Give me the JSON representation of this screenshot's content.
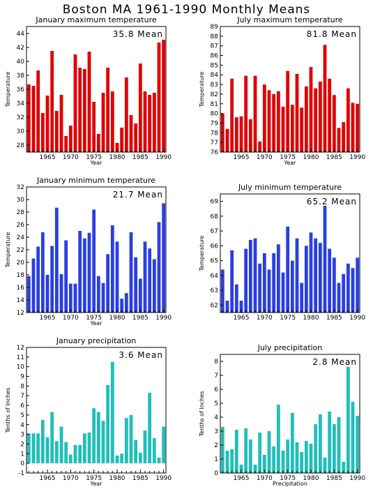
{
  "title": "Boston MA   1961-1990 Monthly Means",
  "colors": {
    "max_temp": "#e00000",
    "min_temp": "#2a3fe0",
    "precip": "#1fbfb8"
  },
  "chart_data": [
    {
      "type": "bar",
      "title": "January maximum temperature",
      "annotation": "35.8 Mean",
      "xlabel": "Year",
      "ylabel": "Temperature",
      "ylim": [
        27,
        45
      ],
      "yticks": [
        28,
        30,
        32,
        34,
        36,
        38,
        40,
        42,
        44
      ],
      "xlim": [
        1960.5,
        1990.5
      ],
      "xticks": [
        1965,
        1970,
        1975,
        1980,
        1985,
        1990
      ],
      "x": [
        1961,
        1962,
        1963,
        1964,
        1965,
        1966,
        1967,
        1968,
        1969,
        1970,
        1971,
        1972,
        1973,
        1974,
        1975,
        1976,
        1977,
        1978,
        1979,
        1980,
        1981,
        1982,
        1983,
        1984,
        1985,
        1986,
        1987,
        1988,
        1989,
        1990
      ],
      "values": [
        36.7,
        36.5,
        38.7,
        32.6,
        35.1,
        41.5,
        32.9,
        35.2,
        29.3,
        30.8,
        41.0,
        39.1,
        38.9,
        41.4,
        34.2,
        29.6,
        35.5,
        39.1,
        35.7,
        28.3,
        30.5,
        37.7,
        32.3,
        31.1,
        39.7,
        35.7,
        35.2,
        35.5,
        42.7,
        43.1
      ],
      "color": "#e00000"
    },
    {
      "type": "bar",
      "title": "July maximum temperature",
      "annotation": "81.8 Mean",
      "xlabel": "Year",
      "ylabel": "Temperature",
      "ylim": [
        76,
        89
      ],
      "yticks": [
        76,
        77,
        78,
        79,
        80,
        81,
        82,
        83,
        84,
        85,
        86,
        87,
        88,
        89
      ],
      "xlim": [
        1960.5,
        1990.5
      ],
      "xticks": [
        1965,
        1970,
        1975,
        1980,
        1985,
        1990
      ],
      "x": [
        1961,
        1962,
        1963,
        1964,
        1965,
        1966,
        1967,
        1968,
        1969,
        1970,
        1971,
        1972,
        1973,
        1974,
        1975,
        1976,
        1977,
        1978,
        1979,
        1980,
        1981,
        1982,
        1983,
        1984,
        1985,
        1986,
        1987,
        1988,
        1989,
        1990
      ],
      "values": [
        80.0,
        78.4,
        83.6,
        79.6,
        79.7,
        83.9,
        79.4,
        83.9,
        77.1,
        83.0,
        82.4,
        82.0,
        82.3,
        80.7,
        84.4,
        80.9,
        84.1,
        80.6,
        82.8,
        84.8,
        82.6,
        83.3,
        87.1,
        83.6,
        81.9,
        78.5,
        79.1,
        82.6,
        81.1,
        81.0
      ],
      "color": "#e00000"
    },
    {
      "type": "bar",
      "title": "January minimum temperature",
      "annotation": "21.7 Mean",
      "xlabel": "Year",
      "ylabel": "Temperature",
      "ylim": [
        12,
        32
      ],
      "yticks": [
        12,
        14,
        16,
        18,
        20,
        22,
        24,
        26,
        28,
        30,
        32
      ],
      "xlim": [
        1960.5,
        1990.5
      ],
      "xticks": [
        1965,
        1970,
        1975,
        1980,
        1985,
        1990
      ],
      "x": [
        1961,
        1962,
        1963,
        1964,
        1965,
        1966,
        1967,
        1968,
        1969,
        1970,
        1971,
        1972,
        1973,
        1974,
        1975,
        1976,
        1977,
        1978,
        1979,
        1980,
        1981,
        1982,
        1983,
        1984,
        1985,
        1986,
        1987,
        1988,
        1989,
        1990
      ],
      "values": [
        17.8,
        20.6,
        22.5,
        24.8,
        18.0,
        22.6,
        28.7,
        18.1,
        23.5,
        16.6,
        16.6,
        25.0,
        23.8,
        24.7,
        28.4,
        17.8,
        16.7,
        21.3,
        25.9,
        23.3,
        14.2,
        15.1,
        24.8,
        20.8,
        17.4,
        23.3,
        22.2,
        20.5,
        26.4,
        29.4
      ],
      "color": "#2a3fe0"
    },
    {
      "type": "bar",
      "title": "July minimum temperature",
      "annotation": "65.2 Mean",
      "xlabel": "",
      "ylabel": "Temperature",
      "ylim": [
        61.5,
        69.5
      ],
      "yticks": [
        62,
        63,
        64,
        65,
        66,
        67,
        68,
        69
      ],
      "xlim": [
        1960.5,
        1990.5
      ],
      "xticks": [
        1965,
        1970,
        1975,
        1980,
        1985,
        1990
      ],
      "x": [
        1961,
        1962,
        1963,
        1964,
        1965,
        1966,
        1967,
        1968,
        1969,
        1970,
        1971,
        1972,
        1973,
        1974,
        1975,
        1976,
        1977,
        1978,
        1979,
        1980,
        1981,
        1982,
        1983,
        1984,
        1985,
        1986,
        1987,
        1988,
        1989,
        1990
      ],
      "values": [
        64.4,
        62.3,
        65.7,
        63.4,
        62.3,
        65.8,
        66.4,
        66.5,
        64.8,
        65.5,
        64.4,
        65.5,
        66.1,
        64.2,
        67.3,
        65.0,
        66.5,
        63.5,
        66.0,
        66.9,
        66.5,
        66.2,
        68.7,
        65.8,
        65.2,
        63.5,
        64.1,
        64.8,
        64.5,
        65.2
      ],
      "color": "#2a3fe0"
    },
    {
      "type": "bar",
      "title": "January precipitation",
      "annotation": "3.6 Mean",
      "xlabel": "Year",
      "ylabel": "Tenths of Inches",
      "ylim": [
        -1,
        12
      ],
      "yticks": [
        -1,
        0,
        1,
        2,
        3,
        4,
        5,
        6,
        7,
        8,
        9,
        10,
        11,
        12
      ],
      "xlim": [
        1960.5,
        1990.5
      ],
      "xticks": [
        1965,
        1970,
        1975,
        1980,
        1985,
        1990
      ],
      "x": [
        1961,
        1962,
        1963,
        1964,
        1965,
        1966,
        1967,
        1968,
        1969,
        1970,
        1971,
        1972,
        1973,
        1974,
        1975,
        1976,
        1977,
        1978,
        1979,
        1980,
        1981,
        1982,
        1983,
        1984,
        1985,
        1986,
        1987,
        1988,
        1989,
        1990
      ],
      "values": [
        3.1,
        3.1,
        3.1,
        4.5,
        2.7,
        5.3,
        2.3,
        3.8,
        2.2,
        0.9,
        1.9,
        1.9,
        3.1,
        3.2,
        5.7,
        5.3,
        4.4,
        8.1,
        10.5,
        0.8,
        1.0,
        4.7,
        5.0,
        2.4,
        1.1,
        3.4,
        7.3,
        2.6,
        0.6,
        3.8
      ],
      "color": "#1fbfb8"
    },
    {
      "type": "bar",
      "title": "July precipitation",
      "annotation": "2.8 Mean",
      "xlabel": "Precipitation",
      "ylabel": "Tenths of Inches",
      "ylim": [
        0,
        8.5
      ],
      "yticks": [
        0,
        1,
        2,
        3,
        4,
        5,
        6,
        7,
        8
      ],
      "xlim": [
        1960.5,
        1990.5
      ],
      "xticks": [
        1965,
        1970,
        1975,
        1980,
        1985,
        1990
      ],
      "x": [
        1961,
        1962,
        1963,
        1964,
        1965,
        1966,
        1967,
        1968,
        1969,
        1970,
        1971,
        1972,
        1973,
        1974,
        1975,
        1976,
        1977,
        1978,
        1979,
        1980,
        1981,
        1982,
        1983,
        1984,
        1985,
        1986,
        1987,
        1988,
        1989,
        1990
      ],
      "values": [
        3.3,
        1.6,
        1.7,
        3.1,
        0.6,
        3.2,
        2.4,
        0.6,
        2.9,
        1.3,
        3.0,
        1.9,
        4.9,
        1.6,
        2.4,
        4.3,
        2.2,
        1.5,
        2.3,
        2.1,
        3.5,
        4.2,
        1.1,
        4.4,
        3.5,
        4.0,
        0.8,
        7.6,
        5.1,
        4.1
      ],
      "color": "#1fbfb8"
    }
  ]
}
